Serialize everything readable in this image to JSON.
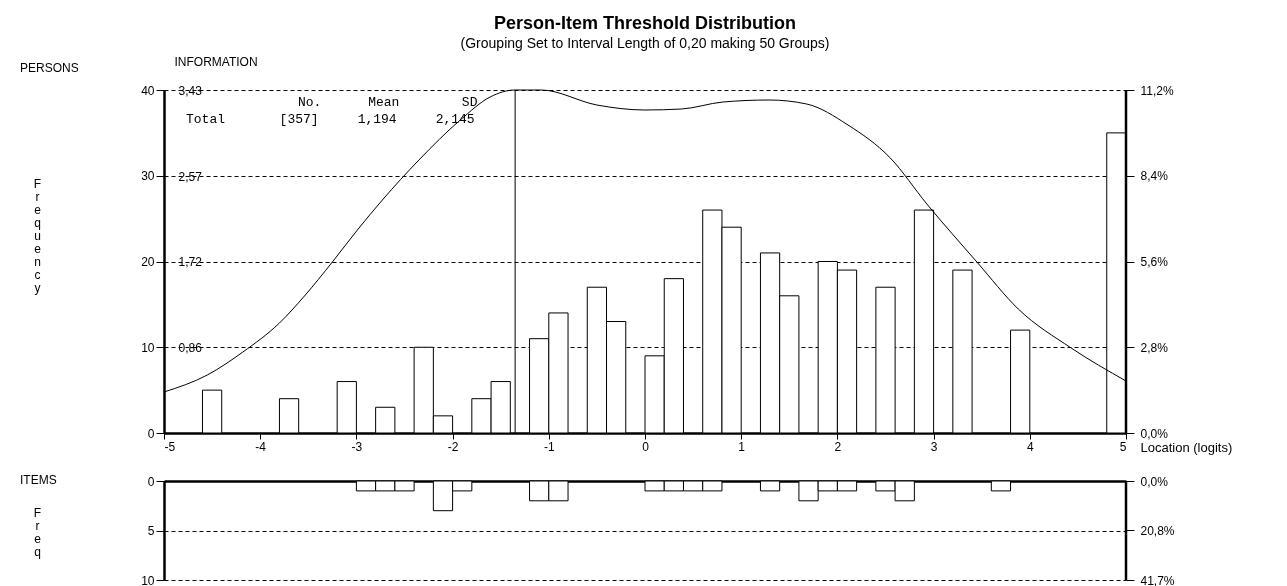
{
  "chart_data": [
    {
      "type": "histogram",
      "title": "Person-Item Threshold Distribution",
      "subtitle": "(Grouping Set to Interval Length of  0,20  making  50  Groups)",
      "xlabel": "Location (logits)",
      "ylabel": "Frequency",
      "y3label": "INFORMATION",
      "annotations": [
        "PERSONS",
        "No.      Mean        SD",
        "Total       [357]     1,194     2,145"
      ],
      "bins": [
        -5,
        -4.8,
        -4.6,
        -4.4,
        -4.2,
        -4,
        -3.8,
        -3.6,
        -3.4,
        -3.2,
        -3,
        -2.8,
        -2.6,
        -2.4,
        -2.2,
        -2,
        -1.8,
        -1.6,
        -1.4,
        -1.2,
        -1,
        -0.8,
        -0.6,
        -0.4,
        -0.2,
        0,
        0.2,
        0.4,
        0.6,
        0.8,
        1,
        1.2,
        1.4,
        1.6,
        1.8,
        2,
        2.2,
        2.4,
        2.6,
        2.8,
        3,
        3.2,
        3.4,
        3.6,
        3.8,
        4,
        4.2,
        4.4,
        4.6,
        4.8,
        5
      ],
      "series": [
        {
          "color": "#ffffff",
          "values": [
            0,
            0,
            5,
            0,
            0,
            0,
            4,
            0,
            0,
            6,
            0,
            3,
            0,
            10,
            2,
            0,
            4,
            6,
            0,
            11,
            14,
            0,
            17,
            13,
            0,
            9,
            18,
            0,
            26,
            24,
            0,
            21,
            16,
            0,
            20,
            19,
            0,
            17,
            0,
            26,
            0,
            19,
            0,
            0,
            12,
            0,
            0,
            0,
            0,
            35
          ]
        },
        {
          "type": "line",
          "axis": "y3",
          "color": "#000000",
          "x": [
            -5,
            -4.55,
            -4.18,
            -3.8,
            -3.54,
            -3.25,
            -2.99,
            -2.73,
            -2.35,
            -1.92,
            -1.61,
            -1.35,
            -1.08,
            -0.5,
            0,
            0.38,
            0.81,
            1.29,
            1.68,
            2.11,
            2.55,
            2.93,
            3.45,
            3.88,
            4.43,
            5
          ],
          "values": [
            0.41,
            0.58,
            0.81,
            1.1,
            1.37,
            1.71,
            2.03,
            2.33,
            2.73,
            3.13,
            3.36,
            3.43,
            3.43,
            3.28,
            3.23,
            3.24,
            3.31,
            3.33,
            3.29,
            3.08,
            2.75,
            2.29,
            1.71,
            1.24,
            0.85,
            0.52
          ]
        }
      ],
      "xlim": [
        -5,
        5
      ],
      "xticks": [
        -5,
        -4,
        -3,
        -2,
        -1,
        0,
        1,
        2,
        3,
        4,
        5
      ],
      "ylim": [
        0,
        40
      ],
      "yticks": [
        0,
        10,
        20,
        30,
        40
      ],
      "y2lim": [
        0,
        11.2
      ],
      "y2ticks": [
        {
          "value": 0,
          "label": "0,0%"
        },
        {
          "value": 2.8,
          "label": "2,8%"
        },
        {
          "value": 5.6,
          "label": "5,6%"
        },
        {
          "value": 8.4,
          "label": "8,4%"
        },
        {
          "value": 11.2,
          "label": "11,2%"
        }
      ],
      "y3lim": [
        0,
        3.43
      ],
      "y3ticks": [
        {
          "value": 0.86,
          "label": "0,86"
        },
        {
          "value": 1.72,
          "label": "1,72"
        },
        {
          "value": 2.57,
          "label": "2,57"
        },
        {
          "value": 3.43,
          "label": "3,43"
        }
      ],
      "ref_lines": [
        {
          "axis": "x",
          "value": -1.35
        }
      ],
      "grid": "y",
      "marker": "none",
      "line_style": "solid"
    },
    {
      "type": "histogram",
      "ylabel": "Freq",
      "annotations": [
        "ITEMS"
      ],
      "bins": [
        -5,
        -4.8,
        -4.6,
        -4.4,
        -4.2,
        -4,
        -3.8,
        -3.6,
        -3.4,
        -3.2,
        -3,
        -2.8,
        -2.6,
        -2.4,
        -2.2,
        -2,
        -1.8,
        -1.6,
        -1.4,
        -1.2,
        -1,
        -0.8,
        -0.6,
        -0.4,
        -0.2,
        0,
        0.2,
        0.4,
        0.6,
        0.8,
        1,
        1.2,
        1.4,
        1.6,
        1.8,
        2,
        2.2,
        2.4,
        2.6,
        2.8,
        3,
        3.2,
        3.4,
        3.6,
        3.8,
        4,
        4.2,
        4.4,
        4.6,
        4.8,
        5
      ],
      "series": [
        {
          "color": "#ffffff",
          "values": [
            0,
            0,
            0,
            0,
            0,
            0,
            0,
            0,
            0,
            0,
            1,
            1,
            1,
            0,
            3,
            1,
            0,
            0,
            0,
            2,
            2,
            0,
            0,
            0,
            0,
            1,
            1,
            1,
            1,
            0,
            0,
            1,
            0,
            2,
            1,
            1,
            0,
            1,
            2,
            0,
            0,
            0,
            0,
            1,
            0,
            0,
            0,
            0,
            0,
            0
          ]
        }
      ],
      "xlim": [
        -5,
        5
      ],
      "xticks": [
        -5,
        -4,
        -3,
        -2,
        -1,
        0,
        1,
        2,
        3,
        4,
        5
      ],
      "ylim": [
        10,
        0
      ],
      "yticks": [
        0,
        5,
        10
      ],
      "y2lim": [
        41.7,
        0
      ],
      "y2ticks": [
        {
          "value": 0,
          "label": "0,0%"
        },
        {
          "value": 20.8,
          "label": "20,8%"
        },
        {
          "value": 41.7,
          "label": "41,7%"
        }
      ],
      "grid": "y",
      "tick_labels": "y"
    }
  ]
}
